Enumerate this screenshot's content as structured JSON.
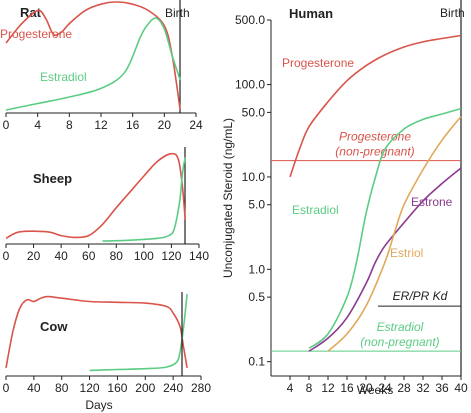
{
  "colors": {
    "progesterone": "#d9544a",
    "estradiol": "#5ccc84",
    "estrone": "#8b3a8f",
    "estriol": "#e0a85a",
    "axis": "#222222",
    "ref": "#d9544a",
    "ref2": "#5ccc84"
  },
  "days_label": "Days",
  "chart_data": [
    {
      "type": "line",
      "title": "Rat",
      "event_label": "Birth",
      "event_x": 22,
      "xlim": [
        0,
        24
      ],
      "xticks": [
        "0",
        "4",
        "8",
        "12",
        "16",
        "20",
        "24"
      ],
      "series": [
        {
          "name": "Progesterone",
          "color_key": "progesterone",
          "x": [
            0,
            2,
            4,
            5,
            6,
            7,
            8,
            10,
            12,
            14,
            16,
            18,
            20,
            21,
            22
          ],
          "y": [
            0.62,
            0.8,
            0.92,
            0.85,
            0.7,
            0.72,
            0.8,
            0.92,
            0.98,
            1.0,
            0.98,
            0.92,
            0.78,
            0.5,
            0.0
          ]
        },
        {
          "name": "Estradiol",
          "color_key": "estradiol",
          "x": [
            0,
            4,
            8,
            12,
            15,
            17,
            18,
            19,
            20,
            21,
            22
          ],
          "y": [
            0.0,
            0.06,
            0.12,
            0.2,
            0.35,
            0.68,
            0.8,
            0.85,
            0.75,
            0.5,
            0.28
          ]
        }
      ]
    },
    {
      "type": "line",
      "title": "Sheep",
      "event_x": 130,
      "xlim": [
        0,
        140
      ],
      "xticks": [
        "0",
        "20",
        "40",
        "60",
        "80",
        "100",
        "120",
        "140"
      ],
      "series": [
        {
          "name": "",
          "color_key": "progesterone",
          "x": [
            0,
            10,
            30,
            40,
            50,
            60,
            70,
            80,
            90,
            100,
            110,
            120,
            125,
            128,
            130
          ],
          "y": [
            0.05,
            0.12,
            0.12,
            0.08,
            0.06,
            0.08,
            0.2,
            0.38,
            0.55,
            0.72,
            0.88,
            0.96,
            0.9,
            0.6,
            0.25
          ]
        },
        {
          "name": "",
          "color_key": "estradiol",
          "x": [
            70,
            90,
            110,
            118,
            122,
            126,
            128,
            130
          ],
          "y": [
            0.02,
            0.03,
            0.05,
            0.08,
            0.15,
            0.45,
            0.75,
            0.92
          ]
        }
      ]
    },
    {
      "type": "line",
      "title": "Cow",
      "event_x": 260,
      "xlim": [
        0,
        280
      ],
      "xticks": [
        "0",
        "40",
        "80",
        "120",
        "160",
        "200",
        "240",
        "280"
      ],
      "series": [
        {
          "name": "",
          "color_key": "progesterone",
          "x": [
            0,
            10,
            20,
            30,
            40,
            50,
            60,
            80,
            120,
            160,
            200,
            230,
            240,
            250,
            255,
            260
          ],
          "y": [
            0.05,
            0.5,
            0.78,
            0.88,
            0.86,
            0.9,
            0.92,
            0.9,
            0.86,
            0.85,
            0.84,
            0.8,
            0.72,
            0.55,
            0.3,
            0.05
          ]
        },
        {
          "name": "",
          "color_key": "estradiol",
          "x": [
            120,
            160,
            200,
            230,
            245,
            250,
            255,
            260
          ],
          "y": [
            0.02,
            0.03,
            0.04,
            0.06,
            0.12,
            0.25,
            0.55,
            0.95
          ]
        }
      ]
    },
    {
      "type": "line",
      "title": "Human",
      "event_label": "Birth",
      "event_x": 40,
      "xlabel": "Weeks",
      "ylabel": "Unconjugated Steroid (ng/mL)",
      "yscale": "log",
      "xlim": [
        0,
        40
      ],
      "ylim": [
        0.07,
        500
      ],
      "xticks": [
        "4",
        "8",
        "12",
        "16",
        "20",
        "24",
        "28",
        "32",
        "36",
        "40"
      ],
      "yticks": [
        "0.1",
        "0.5",
        "1.0",
        "5.0",
        "10.0",
        "50.0",
        "100.0",
        "500.0"
      ],
      "series": [
        {
          "name": "Progesterone",
          "color_key": "progesterone",
          "x": [
            4,
            6,
            8,
            12,
            16,
            20,
            24,
            28,
            32,
            36,
            40
          ],
          "y": [
            10,
            20,
            35,
            65,
            110,
            160,
            210,
            255,
            290,
            315,
            340
          ]
        },
        {
          "name": "Estradiol",
          "color_key": "estradiol",
          "x": [
            8,
            12,
            16,
            18,
            20,
            22,
            24,
            28,
            32,
            36,
            40
          ],
          "y": [
            0.14,
            0.2,
            0.5,
            1.2,
            4,
            10,
            20,
            33,
            42,
            48,
            55
          ]
        },
        {
          "name": "Estrone",
          "color_key": "estrone",
          "x": [
            8,
            12,
            16,
            20,
            22,
            24,
            28,
            32,
            36,
            40
          ],
          "y": [
            0.13,
            0.18,
            0.3,
            0.7,
            1.2,
            1.8,
            3.2,
            5.5,
            8.5,
            12.5
          ]
        },
        {
          "name": "Estriol",
          "color_key": "estriol",
          "x": [
            12,
            16,
            20,
            24,
            26,
            28,
            32,
            36,
            40
          ],
          "y": [
            0.13,
            0.2,
            0.4,
            1.2,
            2.5,
            5,
            12,
            25,
            45
          ]
        }
      ],
      "references": [
        {
          "name": "Progesterone\n(non-pregnant)",
          "value": 15,
          "color_key": "ref"
        },
        {
          "name": "Estradiol\n(non-pregnant)",
          "value": 0.13,
          "color_key": "ref2"
        },
        {
          "name": "ER/PR Kd",
          "value": 0.4,
          "color_key": "axis"
        }
      ]
    }
  ]
}
